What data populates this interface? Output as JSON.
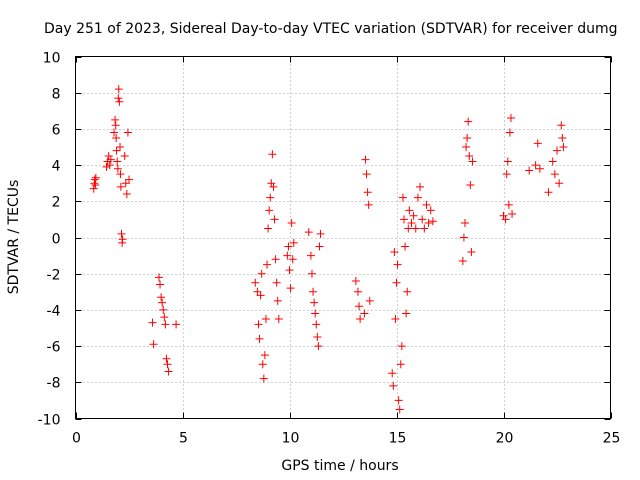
{
  "chart_data": {
    "type": "scatter",
    "title": "Day 251 of 2023, Sidereal Day-to-day VTEC variation (SDTVAR) for receiver dumg",
    "xlabel": "GPS time / hours",
    "ylabel": "SDTVAR / TECUs",
    "xlim": [
      0,
      25
    ],
    "ylim": [
      -10,
      10
    ],
    "xticks": [
      0,
      5,
      10,
      15,
      20,
      25
    ],
    "yticks": [
      -10,
      -8,
      -6,
      -4,
      -2,
      0,
      2,
      4,
      6,
      8,
      10
    ],
    "grid": true,
    "marker": "+",
    "color": "#ff0000",
    "series": [
      {
        "name": "SDTVAR",
        "points": [
          [
            0.85,
            2.7
          ],
          [
            0.88,
            3.0
          ],
          [
            0.9,
            3.2
          ],
          [
            0.93,
            2.9
          ],
          [
            0.95,
            3.3
          ],
          [
            1.45,
            3.9
          ],
          [
            1.5,
            4.2
          ],
          [
            1.55,
            4.5
          ],
          [
            1.6,
            4.0
          ],
          [
            1.65,
            4.3
          ],
          [
            1.8,
            5.8
          ],
          [
            1.85,
            6.5
          ],
          [
            1.88,
            6.2
          ],
          [
            1.9,
            5.5
          ],
          [
            1.92,
            4.8
          ],
          [
            1.95,
            4.2
          ],
          [
            1.98,
            3.8
          ],
          [
            2.0,
            7.7
          ],
          [
            2.02,
            8.2
          ],
          [
            2.05,
            7.5
          ],
          [
            2.08,
            5.0
          ],
          [
            2.1,
            3.5
          ],
          [
            2.12,
            2.8
          ],
          [
            2.15,
            0.2
          ],
          [
            2.18,
            -0.3
          ],
          [
            2.2,
            -0.1
          ],
          [
            2.3,
            4.5
          ],
          [
            2.35,
            3.0
          ],
          [
            2.4,
            2.4
          ],
          [
            2.45,
            5.8
          ],
          [
            2.5,
            3.2
          ],
          [
            3.6,
            -4.7
          ],
          [
            3.65,
            -5.9
          ],
          [
            3.9,
            -2.2
          ],
          [
            3.95,
            -2.6
          ],
          [
            4.0,
            -3.3
          ],
          [
            4.05,
            -3.6
          ],
          [
            4.1,
            -4.0
          ],
          [
            4.15,
            -4.4
          ],
          [
            4.2,
            -4.8
          ],
          [
            4.25,
            -6.7
          ],
          [
            4.3,
            -7.0
          ],
          [
            4.35,
            -7.4
          ],
          [
            4.7,
            -4.8
          ],
          [
            8.4,
            -2.5
          ],
          [
            8.5,
            -3.0
          ],
          [
            8.55,
            -4.8
          ],
          [
            8.6,
            -5.6
          ],
          [
            8.65,
            -3.2
          ],
          [
            8.7,
            -2.0
          ],
          [
            8.75,
            -7.0
          ],
          [
            8.8,
            -7.8
          ],
          [
            8.85,
            -6.5
          ],
          [
            8.9,
            -4.5
          ],
          [
            8.95,
            -1.5
          ],
          [
            9.0,
            0.5
          ],
          [
            9.05,
            1.5
          ],
          [
            9.1,
            2.2
          ],
          [
            9.15,
            3.0
          ],
          [
            9.2,
            4.6
          ],
          [
            9.25,
            2.8
          ],
          [
            9.3,
            1.0
          ],
          [
            9.35,
            -1.2
          ],
          [
            9.4,
            -2.5
          ],
          [
            9.45,
            -3.5
          ],
          [
            9.5,
            -4.5
          ],
          [
            9.9,
            -1.0
          ],
          [
            9.95,
            -0.5
          ],
          [
            10.0,
            -1.8
          ],
          [
            10.05,
            -2.8
          ],
          [
            10.1,
            0.8
          ],
          [
            10.15,
            -1.2
          ],
          [
            10.2,
            -0.3
          ],
          [
            10.9,
            0.3
          ],
          [
            11.0,
            -1.0
          ],
          [
            11.05,
            -2.0
          ],
          [
            11.1,
            -3.0
          ],
          [
            11.15,
            -3.6
          ],
          [
            11.2,
            -4.2
          ],
          [
            11.25,
            -4.8
          ],
          [
            11.3,
            -5.5
          ],
          [
            11.35,
            -6.0
          ],
          [
            11.4,
            -0.5
          ],
          [
            11.45,
            0.2
          ],
          [
            13.1,
            -2.4
          ],
          [
            13.2,
            -3.0
          ],
          [
            13.25,
            -3.8
          ],
          [
            13.3,
            -4.5
          ],
          [
            13.5,
            -4.2
          ],
          [
            13.55,
            4.3
          ],
          [
            13.6,
            3.5
          ],
          [
            13.65,
            2.5
          ],
          [
            13.7,
            1.8
          ],
          [
            13.75,
            -3.5
          ],
          [
            14.8,
            -7.5
          ],
          [
            14.85,
            -8.2
          ],
          [
            14.9,
            -0.8
          ],
          [
            14.95,
            -4.5
          ],
          [
            15.0,
            -2.5
          ],
          [
            15.05,
            -1.5
          ],
          [
            15.1,
            -9.0
          ],
          [
            15.15,
            -9.5
          ],
          [
            15.2,
            -7.0
          ],
          [
            15.25,
            -6.0
          ],
          [
            15.3,
            2.2
          ],
          [
            15.35,
            1.0
          ],
          [
            15.4,
            -0.5
          ],
          [
            15.45,
            -4.2
          ],
          [
            15.5,
            -3.0
          ],
          [
            15.55,
            0.5
          ],
          [
            15.6,
            1.5
          ],
          [
            15.7,
            0.8
          ],
          [
            15.8,
            1.2
          ],
          [
            15.9,
            0.5
          ],
          [
            16.0,
            2.2
          ],
          [
            16.1,
            2.8
          ],
          [
            16.2,
            1.0
          ],
          [
            16.3,
            0.5
          ],
          [
            16.4,
            1.8
          ],
          [
            16.5,
            0.8
          ],
          [
            16.6,
            1.5
          ],
          [
            16.7,
            0.9
          ],
          [
            18.1,
            -1.3
          ],
          [
            18.15,
            0.0
          ],
          [
            18.2,
            0.8
          ],
          [
            18.25,
            5.0
          ],
          [
            18.3,
            5.5
          ],
          [
            18.35,
            6.4
          ],
          [
            18.4,
            4.5
          ],
          [
            18.45,
            2.9
          ],
          [
            18.5,
            -0.8
          ],
          [
            18.55,
            4.2
          ],
          [
            20.0,
            1.2
          ],
          [
            20.1,
            1.0
          ],
          [
            20.15,
            3.5
          ],
          [
            20.2,
            4.2
          ],
          [
            20.25,
            1.8
          ],
          [
            20.3,
            5.8
          ],
          [
            20.35,
            6.6
          ],
          [
            20.4,
            1.3
          ],
          [
            21.2,
            3.7
          ],
          [
            21.5,
            4.0
          ],
          [
            21.6,
            5.2
          ],
          [
            21.7,
            3.8
          ],
          [
            22.1,
            2.5
          ],
          [
            22.3,
            4.2
          ],
          [
            22.4,
            3.5
          ],
          [
            22.5,
            4.8
          ],
          [
            22.6,
            3.0
          ],
          [
            22.7,
            6.2
          ],
          [
            22.75,
            5.5
          ],
          [
            22.8,
            5.0
          ]
        ]
      }
    ]
  }
}
